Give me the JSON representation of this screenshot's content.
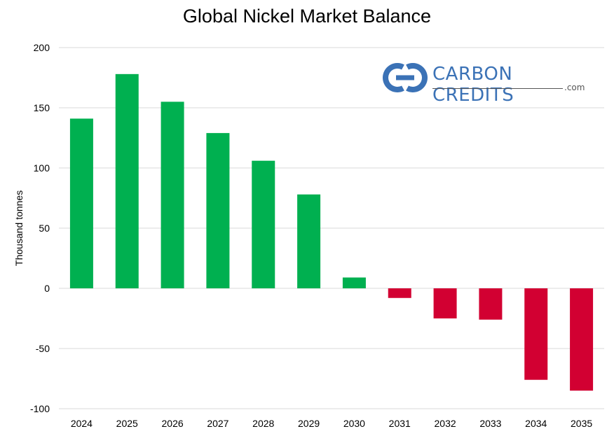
{
  "chart_data": {
    "type": "bar",
    "title": "Global Nickel Market Balance",
    "xlabel": "",
    "ylabel": "Thousand tonnes",
    "categories": [
      "2024",
      "2025",
      "2026",
      "2027",
      "2028",
      "2029",
      "2030",
      "2031",
      "2032",
      "2033",
      "2034",
      "2035"
    ],
    "values": [
      141,
      178,
      155,
      129,
      106,
      78,
      9,
      -8,
      -25,
      -26,
      -76,
      -85
    ],
    "ylim": [
      -100,
      200
    ],
    "yticks": [
      200,
      150,
      100,
      50,
      0,
      -50,
      -100
    ],
    "grid": true,
    "colors": {
      "positive": "#00b050",
      "negative": "#d20032"
    }
  },
  "logo": {
    "text": "CARBON CREDITS",
    "suffix": ".com",
    "color": "#3b72b6"
  }
}
